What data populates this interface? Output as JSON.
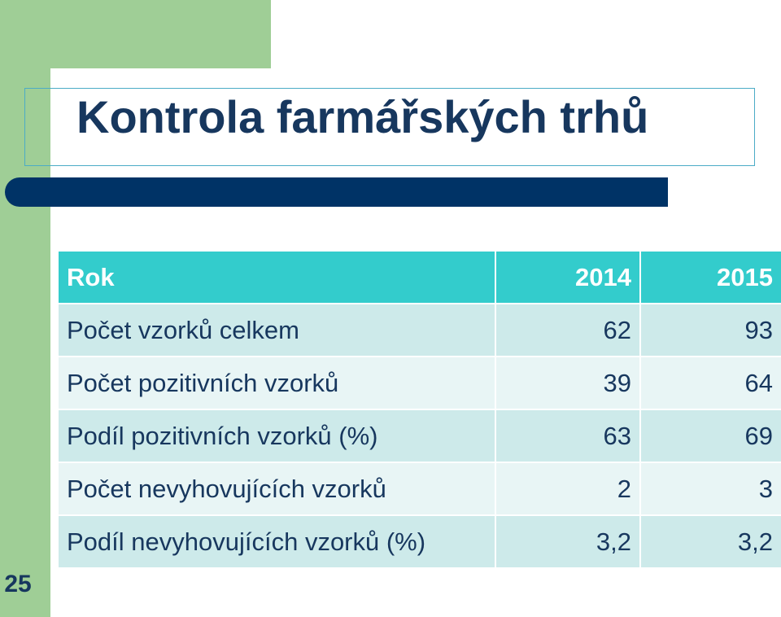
{
  "slide": {
    "title": "Kontrola farmářských trhů",
    "page_number": "25"
  },
  "table": {
    "headers": [
      "Rok",
      "2014",
      "2015"
    ],
    "rows": [
      {
        "label": "Počet vzorků celkem",
        "v2014": "62",
        "v2015": "93"
      },
      {
        "label": "Počet pozitivních vzorků",
        "v2014": "39",
        "v2015": "64"
      },
      {
        "label": "Podíl pozitivních vzorků (%)",
        "v2014": "63",
        "v2015": "69"
      },
      {
        "label": "Počet nevyhovujících vzorků",
        "v2014": "2",
        "v2015": "3"
      },
      {
        "label": "Podíl nevyhovujících vzorků (%)",
        "v2014": "3,2",
        "v2015": "3,2"
      }
    ]
  },
  "colors": {
    "accent_green": "#9fce96",
    "title_navy": "#17375e",
    "bar_navy": "#003366",
    "header_teal": "#33cccc",
    "row_light": "#cdeaea",
    "row_lighter": "#e8f5f5"
  }
}
